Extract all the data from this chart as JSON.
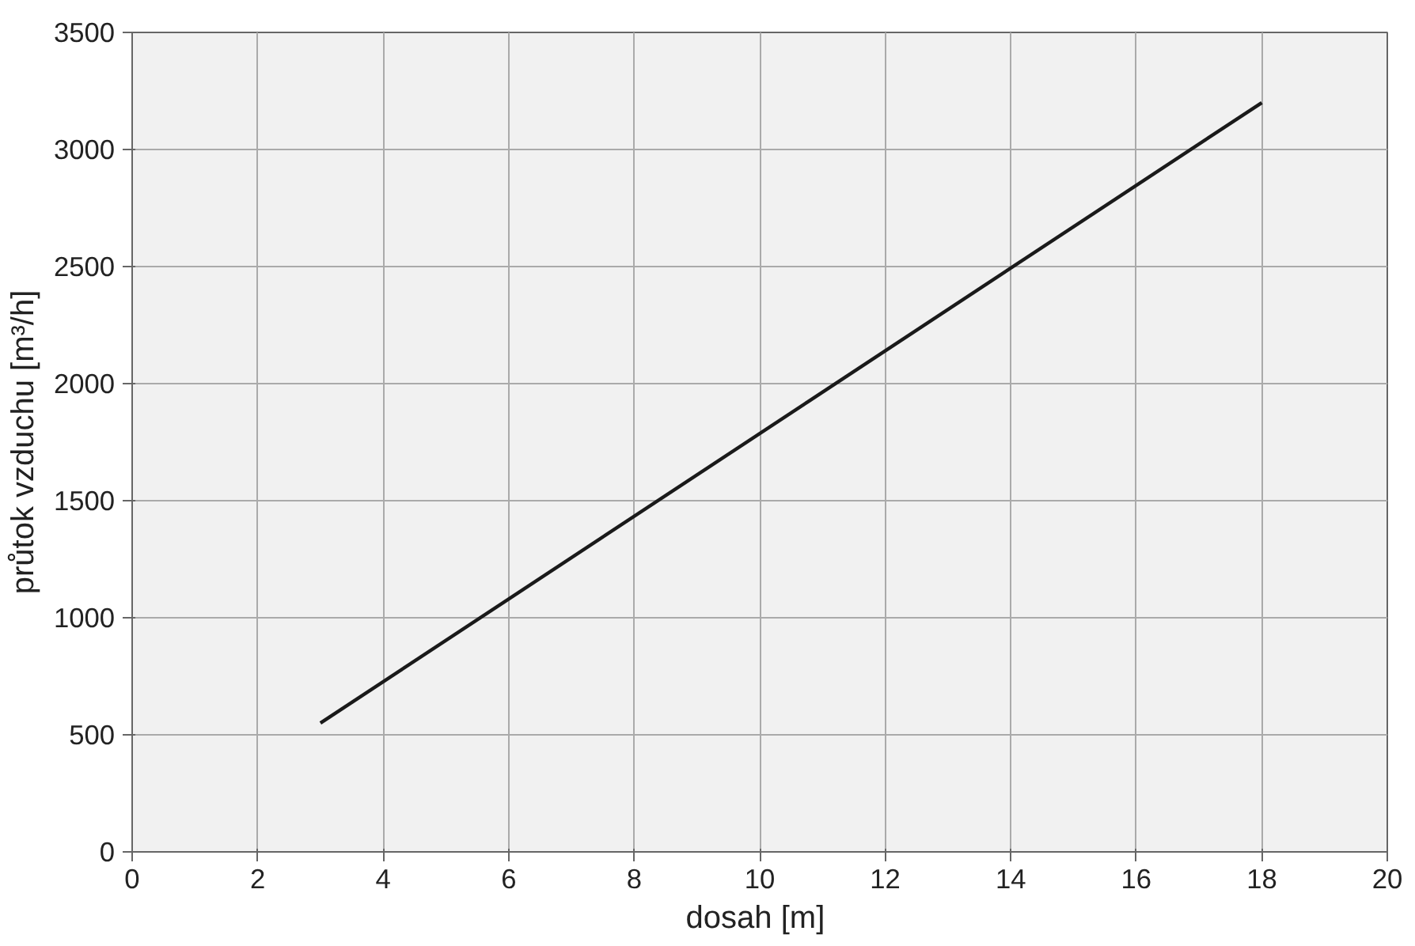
{
  "chart_data": {
    "type": "line",
    "xlabel": "dosah  [m]",
    "ylabel": "průtok vzduchu [m³/h]",
    "x": [
      3,
      18
    ],
    "series": [
      {
        "color": "#1a1a1a",
        "values": [
          550,
          3200
        ]
      }
    ],
    "xlim": [
      0,
      20
    ],
    "xticks": [
      0,
      2,
      4,
      6,
      8,
      10,
      12,
      14,
      16,
      18,
      20
    ],
    "ylim": [
      0,
      3500
    ],
    "yticks": [
      0,
      500,
      1000,
      1500,
      2000,
      2500,
      3000,
      3500
    ],
    "grid": true,
    "marker": "none",
    "line_style": "solid"
  }
}
